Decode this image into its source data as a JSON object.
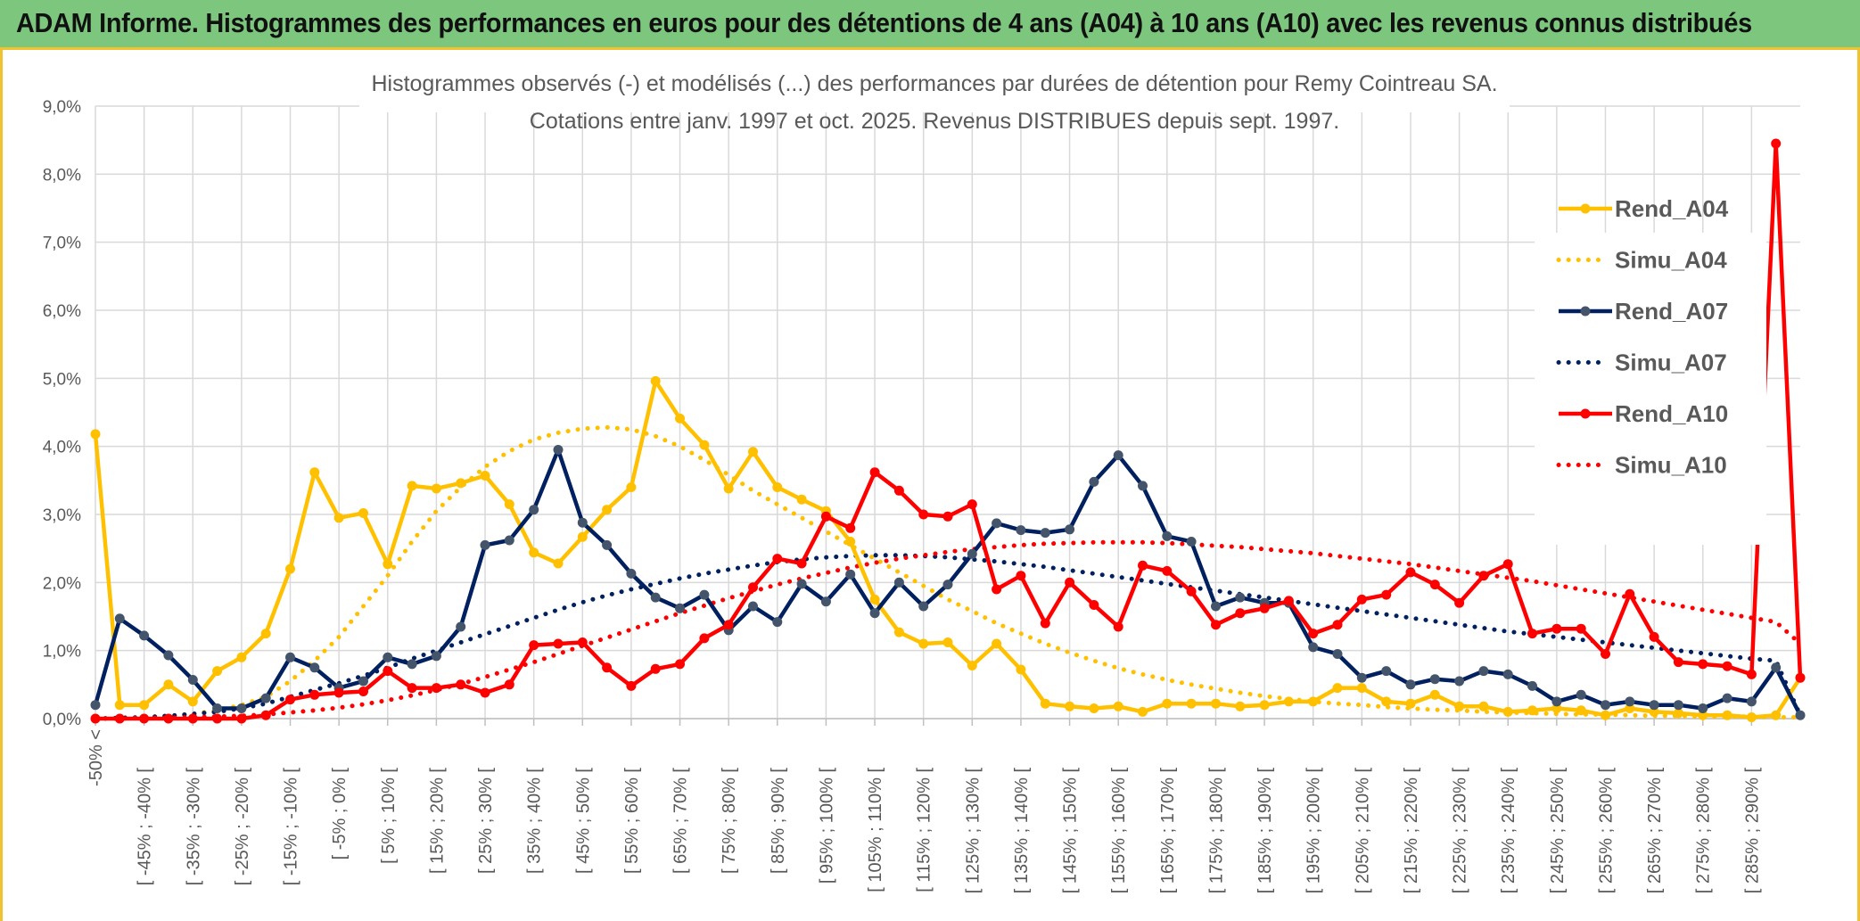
{
  "header": {
    "title": "ADAM Informe. Histogrammes des performances en euros pour des détentions de 4 ans (A04) à 10 ans (A10) avec les revenus connus distribués"
  },
  "colors": {
    "header_bg": "#7dc67d",
    "accent_border": "#f2c12e",
    "A04": "#ffc000",
    "A07": "#002060",
    "A07_marker": "#44546a",
    "A10": "#ff0000",
    "grid": "#d9d9d9",
    "axis_text": "#595959"
  },
  "chart_data": {
    "type": "line",
    "title": "Histogrammes observés (-) et modélisés (...) des performances par durées de détention pour Remy Cointreau SA.",
    "subtitle": "Cotations entre janv. 1997 et oct. 2025. Revenus DISTRIBUES depuis sept. 1997.",
    "xlabel": "",
    "ylabel": "",
    "ylim": [
      0,
      9
    ],
    "yticks": [
      "0,0%",
      "1,0%",
      "2,0%",
      "3,0%",
      "4,0%",
      "5,0%",
      "6,0%",
      "7,0%",
      "8,0%",
      "9,0%"
    ],
    "legend_position": "right",
    "categories": [
      "-50% <",
      "[ -50% ; -45% [",
      "[ -45% ; -40% [",
      "[ -40% ; -35% [",
      "[ -35% ; -30% [",
      "[ -30% ; -25% [",
      "[ -25% ; -20% [",
      "[ -20% ; -15% [",
      "[ -15% ; -10% [",
      "[ -10% ; -5% [",
      "[ -5% ; 0% [",
      "[ 0% ; 5% [",
      "[ 5% ; 10% [",
      "[ 10% ; 15% [",
      "[ 15% ; 20% [",
      "[ 20% ; 25% [",
      "[ 25% ; 30% [",
      "[ 30% ; 35% [",
      "[ 35% ; 40% [",
      "[ 40% ; 45% [",
      "[ 45% ; 50% [",
      "[ 50% ; 55% [",
      "[ 55% ; 60% [",
      "[ 60% ; 65% [",
      "[ 65% ; 70% [",
      "[ 70% ; 75% [",
      "[ 75% ; 80% [",
      "[ 80% ; 85% [",
      "[ 85% ; 90% [",
      "[ 90% ; 95% [",
      "[ 95% ; 100% [",
      "[ 100% ; 105% [",
      "[ 105% ; 110% [",
      "[ 110% ; 115% [",
      "[ 115% ; 120% [",
      "[ 120% ; 125% [",
      "[ 125% ; 130% [",
      "[ 130% ; 135% [",
      "[ 135% ; 140% [",
      "[ 140% ; 145% [",
      "[ 145% ; 150% [",
      "[ 150% ; 155% [",
      "[ 155% ; 160% [",
      "[ 160% ; 165% [",
      "[ 165% ; 170% [",
      "[ 170% ; 175% [",
      "[ 175% ; 180% [",
      "[ 180% ; 185% [",
      "[ 185% ; 190% [",
      "[ 190% ; 195% [",
      "[ 195% ; 200% [",
      "[ 200% ; 205% [",
      "[ 205% ; 210% [",
      "[ 210% ; 215% [",
      "[ 215% ; 220% [",
      "[ 220% ; 225% [",
      "[ 225% ; 230% [",
      "[ 230% ; 235% [",
      "[ 235% ; 240% [",
      "[ 240% ; 245% [",
      "[ 245% ; 250% [",
      "[ 250% ; 255% [",
      "[ 255% ; 260% [",
      "[ 260% ; 265% [",
      "[ 265% ; 270% [",
      "[ 270% ; 275% [",
      "[ 275% ; 280% [",
      "[ 280% ; 285% [",
      "[ 285% ; 290% [",
      "[ 290% ; 295% [",
      "[ 295% ; 300% ["
    ],
    "xtick_labels_shown": [
      "-50% <",
      "[ -45% ; -40% [",
      "[ -35% ; -30% [",
      "[ -25% ; -20% [",
      "[ -15% ; -10% [",
      "[ -5% ; 0% [",
      "[ 5% ; 10% [",
      "[ 15% ; 20% [",
      "[ 25% ; 30% [",
      "[ 35% ; 40% [",
      "[ 45% ; 50% [",
      "[ 55% ; 60% [",
      "[ 65% ; 70% [",
      "[ 75% ; 80% [",
      "[ 85% ; 90% [",
      "[ 95% ; 100% [",
      "[ 105% ; 110% [",
      "[ 115% ; 120% [",
      "[ 125% ; 130% [",
      "[ 135% ; 140% [",
      "[ 145% ; 150% [",
      "[ 155% ; 160% [",
      "[ 165% ; 170% [",
      "[ 175% ; 180% [",
      "[ 185% ; 190% [",
      "[ 195% ; 200% [",
      "[ 205% ; 210% [",
      "[ 215% ; 220% [",
      "[ 225% ; 230% [",
      "[ 235% ; 240% [",
      "[ 245% ; 250% [",
      "[ 255% ; 260% [",
      "[ 265% ; 270% [",
      "[ 275% ; 280% [",
      "[ 285% ; 290% ["
    ],
    "series": [
      {
        "name": "Rend_A04",
        "style": "solid-markers",
        "color": "#ffc000",
        "values": [
          4.18,
          0.2,
          0.2,
          0.5,
          0.25,
          0.7,
          0.9,
          1.25,
          2.2,
          3.62,
          2.95,
          3.02,
          2.27,
          3.42,
          3.38,
          3.46,
          3.57,
          3.15,
          2.44,
          2.28,
          2.67,
          3.07,
          3.4,
          4.96,
          4.41,
          4.02,
          3.38,
          3.92,
          3.4,
          3.22,
          3.05,
          2.6,
          1.75,
          1.27,
          1.1,
          1.12,
          0.78,
          1.1,
          0.72,
          0.22,
          0.18,
          0.15,
          0.18,
          0.1,
          0.22,
          0.22,
          0.22,
          0.18,
          0.2,
          0.25,
          0.25,
          0.45,
          0.45,
          0.25,
          0.22,
          0.35,
          0.18,
          0.18,
          0.1,
          0.12,
          0.15,
          0.12,
          0.05,
          0.15,
          0.1,
          0.08,
          0.05,
          0.05,
          0.02,
          0.05,
          0.6
        ]
      },
      {
        "name": "Simu_A04",
        "style": "dotted",
        "color": "#ffc000",
        "values": [
          0.0,
          0.01,
          0.02,
          0.04,
          0.07,
          0.12,
          0.2,
          0.32,
          0.55,
          0.85,
          1.2,
          1.65,
          2.1,
          2.6,
          3.05,
          3.4,
          3.7,
          3.93,
          4.1,
          4.2,
          4.26,
          4.28,
          4.25,
          4.15,
          4.0,
          3.8,
          3.58,
          3.35,
          3.15,
          2.95,
          2.75,
          2.55,
          2.35,
          2.15,
          1.95,
          1.75,
          1.58,
          1.4,
          1.25,
          1.1,
          0.97,
          0.85,
          0.74,
          0.65,
          0.57,
          0.5,
          0.44,
          0.38,
          0.33,
          0.29,
          0.25,
          0.22,
          0.2,
          0.17,
          0.15,
          0.13,
          0.12,
          0.1,
          0.09,
          0.08,
          0.07,
          0.06,
          0.06,
          0.05,
          0.04,
          0.04,
          0.03,
          0.03,
          0.03,
          0.02,
          0.02
        ]
      },
      {
        "name": "Rend_A07",
        "style": "solid-markers",
        "color": "#002060",
        "values": [
          0.2,
          1.47,
          1.22,
          0.93,
          0.57,
          0.15,
          0.15,
          0.3,
          0.9,
          0.75,
          0.45,
          0.55,
          0.9,
          0.8,
          0.92,
          1.35,
          2.55,
          2.62,
          3.07,
          3.95,
          2.88,
          2.55,
          2.13,
          1.78,
          1.62,
          1.82,
          1.3,
          1.65,
          1.42,
          1.98,
          1.72,
          2.12,
          1.55,
          2.0,
          1.65,
          1.97,
          2.42,
          2.87,
          2.77,
          2.73,
          2.78,
          3.48,
          3.87,
          3.42,
          2.68,
          2.6,
          1.65,
          1.78,
          1.7,
          1.7,
          1.05,
          0.95,
          0.6,
          0.7,
          0.5,
          0.58,
          0.55,
          0.7,
          0.65,
          0.48,
          0.25,
          0.35,
          0.2,
          0.25,
          0.2,
          0.2,
          0.15,
          0.3,
          0.25,
          0.75,
          0.05
        ]
      },
      {
        "name": "Simu_A07",
        "style": "dotted",
        "color": "#002060",
        "values": [
          0.0,
          0.01,
          0.02,
          0.04,
          0.07,
          0.1,
          0.15,
          0.22,
          0.32,
          0.42,
          0.52,
          0.63,
          0.75,
          0.88,
          1.0,
          1.12,
          1.24,
          1.36,
          1.48,
          1.6,
          1.71,
          1.81,
          1.9,
          1.98,
          2.06,
          2.13,
          2.19,
          2.25,
          2.3,
          2.34,
          2.37,
          2.39,
          2.4,
          2.4,
          2.39,
          2.37,
          2.34,
          2.31,
          2.27,
          2.23,
          2.18,
          2.13,
          2.08,
          2.03,
          1.98,
          1.93,
          1.88,
          1.83,
          1.78,
          1.73,
          1.68,
          1.63,
          1.58,
          1.53,
          1.48,
          1.43,
          1.38,
          1.33,
          1.28,
          1.24,
          1.2,
          1.16,
          1.12,
          1.08,
          1.04,
          1.0,
          0.96,
          0.92,
          0.88,
          0.85,
          0.05
        ]
      },
      {
        "name": "Rend_A10",
        "style": "solid-markers",
        "color": "#ff0000",
        "values": [
          0.0,
          0.0,
          0.0,
          0.0,
          0.0,
          0.0,
          0.0,
          0.05,
          0.28,
          0.35,
          0.38,
          0.4,
          0.7,
          0.45,
          0.45,
          0.5,
          0.38,
          0.5,
          1.08,
          1.1,
          1.12,
          0.75,
          0.48,
          0.73,
          0.8,
          1.18,
          1.38,
          1.93,
          2.35,
          2.28,
          2.97,
          2.8,
          3.62,
          3.35,
          3.0,
          2.97,
          3.15,
          1.9,
          2.1,
          1.4,
          2.0,
          1.67,
          1.35,
          2.25,
          2.17,
          1.87,
          1.38,
          1.55,
          1.62,
          1.73,
          1.25,
          1.38,
          1.75,
          1.82,
          2.15,
          1.97,
          1.7,
          2.1,
          2.27,
          1.25,
          1.32,
          1.32,
          0.95,
          1.83,
          1.2,
          0.83,
          0.8,
          0.77,
          0.65,
          8.45,
          0.6
        ]
      },
      {
        "name": "Simu_A10",
        "style": "dotted",
        "color": "#ff0000",
        "values": [
          0.0,
          0.0,
          0.01,
          0.01,
          0.02,
          0.03,
          0.04,
          0.06,
          0.09,
          0.12,
          0.16,
          0.21,
          0.27,
          0.34,
          0.42,
          0.51,
          0.61,
          0.72,
          0.83,
          0.95,
          1.07,
          1.19,
          1.31,
          1.43,
          1.55,
          1.66,
          1.77,
          1.87,
          1.97,
          2.06,
          2.14,
          2.22,
          2.29,
          2.35,
          2.4,
          2.45,
          2.49,
          2.52,
          2.55,
          2.57,
          2.58,
          2.59,
          2.59,
          2.59,
          2.58,
          2.56,
          2.54,
          2.52,
          2.49,
          2.46,
          2.43,
          2.39,
          2.35,
          2.31,
          2.27,
          2.22,
          2.17,
          2.12,
          2.07,
          2.02,
          1.96,
          1.9,
          1.84,
          1.78,
          1.72,
          1.66,
          1.6,
          1.54,
          1.48,
          1.42,
          1.1
        ]
      }
    ]
  }
}
